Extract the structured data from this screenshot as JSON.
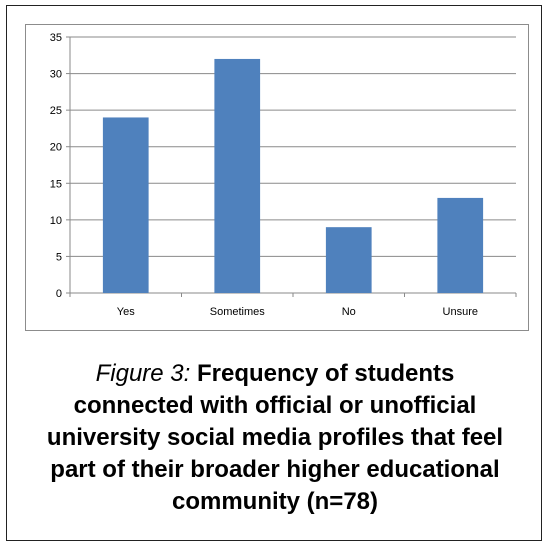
{
  "chart_data": {
    "type": "bar",
    "categories": [
      "Yes",
      "Sometimes",
      "No",
      "Unsure"
    ],
    "values": [
      24,
      32,
      9,
      13
    ],
    "ylim": [
      0,
      35
    ],
    "yticks": [
      0,
      5,
      10,
      15,
      20,
      25,
      30,
      35
    ],
    "grid": true,
    "legend": "none",
    "bar_color": "#4f81bd"
  },
  "caption": {
    "figure_label": "Figure 3:",
    "text": "Frequency of students connected with official or unofficial university social media profiles that feel part of their broader higher educational community (n=78)"
  }
}
